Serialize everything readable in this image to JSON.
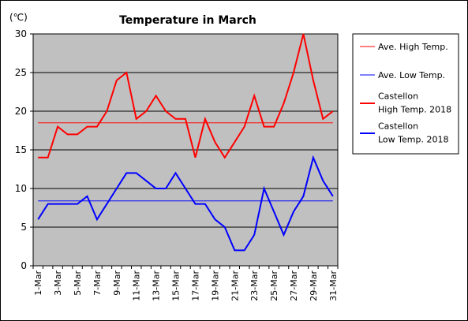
{
  "chart_data": {
    "type": "line",
    "title": "Temperature in March",
    "unit_label": "(℃)",
    "ylim": [
      0,
      30
    ],
    "y_ticks": [
      0,
      5,
      10,
      15,
      20,
      25,
      30
    ],
    "grid": true,
    "legend_position": "right",
    "x": [
      "1-Mar",
      "2-Mar",
      "3-Mar",
      "4-Mar",
      "5-Mar",
      "6-Mar",
      "7-Mar",
      "8-Mar",
      "9-Mar",
      "10-Mar",
      "11-Mar",
      "12-Mar",
      "13-Mar",
      "14-Mar",
      "15-Mar",
      "16-Mar",
      "17-Mar",
      "18-Mar",
      "19-Mar",
      "20-Mar",
      "21-Mar",
      "22-Mar",
      "23-Mar",
      "24-Mar",
      "25-Mar",
      "26-Mar",
      "27-Mar",
      "28-Mar",
      "29-Mar",
      "30-Mar",
      "31-Mar"
    ],
    "x_tick_labels": [
      "1-Mar",
      "3-Mar",
      "5-Mar",
      "7-Mar",
      "9-Mar",
      "11-Mar",
      "13-Mar",
      "15-Mar",
      "17-Mar",
      "19-Mar",
      "21-Mar",
      "23-Mar",
      "25-Mar",
      "27-Mar",
      "29-Mar",
      "31-Mar"
    ],
    "series": [
      {
        "name": "Ave. High Temp.",
        "color": "#ff0000",
        "style": "thin",
        "values": [
          18.5,
          18.5,
          18.5,
          18.5,
          18.5,
          18.5,
          18.5,
          18.5,
          18.5,
          18.5,
          18.5,
          18.5,
          18.5,
          18.5,
          18.5,
          18.5,
          18.5,
          18.5,
          18.5,
          18.5,
          18.5,
          18.5,
          18.5,
          18.5,
          18.5,
          18.5,
          18.5,
          18.5,
          18.5,
          18.5,
          18.5
        ]
      },
      {
        "name": "Ave. Low Temp.",
        "color": "#0000ff",
        "style": "thin",
        "values": [
          8.4,
          8.4,
          8.4,
          8.4,
          8.4,
          8.4,
          8.4,
          8.4,
          8.4,
          8.4,
          8.4,
          8.4,
          8.4,
          8.4,
          8.4,
          8.4,
          8.4,
          8.4,
          8.4,
          8.4,
          8.4,
          8.4,
          8.4,
          8.4,
          8.4,
          8.4,
          8.4,
          8.4,
          8.4,
          8.4,
          8.4
        ]
      },
      {
        "name": "Castellon High Temp. 2018",
        "legend_lines": [
          "Castellon",
          "High Temp. 2018"
        ],
        "color": "#ff0000",
        "style": "thick",
        "values": [
          14,
          14,
          18,
          17,
          17,
          18,
          18,
          20,
          24,
          25,
          19,
          20,
          22,
          20,
          19,
          19,
          14,
          19,
          16,
          14,
          16,
          18,
          22,
          18,
          18,
          21,
          25,
          30,
          24,
          19,
          20
        ]
      },
      {
        "name": "Castellon Low Temp. 2018",
        "legend_lines": [
          "Castellon",
          "Low Temp. 2018"
        ],
        "color": "#0000ff",
        "style": "thick",
        "values": [
          6,
          8,
          8,
          8,
          8,
          9,
          6,
          8,
          10,
          12,
          12,
          11,
          10,
          10,
          12,
          10,
          8,
          8,
          6,
          5,
          2,
          2,
          4,
          10,
          7,
          4,
          7,
          9,
          14,
          11,
          9
        ]
      }
    ]
  }
}
